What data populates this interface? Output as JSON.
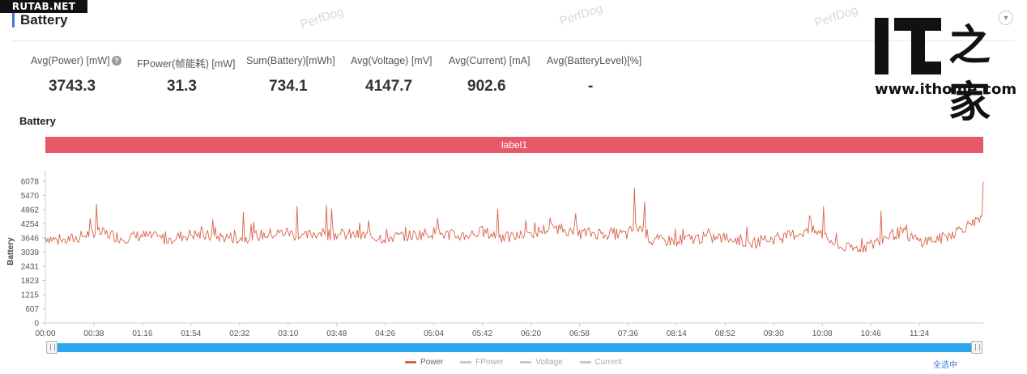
{
  "site_badge": "RUTAB.NET",
  "section_title": "Battery",
  "watermark": "PerfDog",
  "stats": [
    {
      "label": "Avg(Power) [mW]",
      "value": "3743.3",
      "help": true
    },
    {
      "label": "FPower(帧能耗) [mW]",
      "value": "31.3"
    },
    {
      "label": "Sum(Battery)[mWh]",
      "value": "734.1"
    },
    {
      "label": "Avg(Voltage) [mV]",
      "value": "4147.7"
    },
    {
      "label": "Avg(Current) [mA]",
      "value": "902.6"
    },
    {
      "label": "Avg(BatteryLevel)[%]",
      "value": "-"
    }
  ],
  "logo": {
    "brand_text": "IT之家",
    "url": "www.ithome.com"
  },
  "chart_heading": "Battery",
  "label_band": "label1",
  "select_all_label": "全选中",
  "colors": {
    "power": "#d9634a",
    "inactive": "#c8c8c8",
    "band": "#e85868",
    "slider": "#2ba6ec"
  },
  "chart_data": {
    "type": "line",
    "ylabel": "Battery",
    "y_ticks": [
      0,
      607,
      1215,
      1823,
      2431,
      3039,
      3646,
      4254,
      4862,
      5470,
      6078
    ],
    "x_tick_labels": [
      "00:00",
      "00:38",
      "01:16",
      "01:54",
      "02:32",
      "03:10",
      "03:48",
      "04:26",
      "05:04",
      "05:42",
      "06:20",
      "06:58",
      "07:36",
      "08:14",
      "08:52",
      "09:30",
      "10:08",
      "10:46",
      "11:24"
    ],
    "x_range_seconds": [
      0,
      734
    ],
    "ylim": [
      0,
      6078
    ],
    "legend_position": "bottom",
    "series": [
      {
        "name": "Power",
        "active": true,
        "baseline": [
          [
            0,
            3700
          ],
          [
            12,
            3500
          ],
          [
            25,
            3650
          ],
          [
            38,
            3900
          ],
          [
            50,
            3800
          ],
          [
            60,
            3650
          ],
          [
            76,
            3750
          ],
          [
            95,
            3600
          ],
          [
            114,
            3800
          ],
          [
            133,
            3700
          ],
          [
            152,
            3650
          ],
          [
            171,
            3780
          ],
          [
            190,
            3900
          ],
          [
            200,
            3650
          ],
          [
            210,
            3850
          ],
          [
            228,
            3800
          ],
          [
            247,
            3750
          ],
          [
            266,
            3650
          ],
          [
            285,
            3750
          ],
          [
            304,
            3880
          ],
          [
            323,
            3720
          ],
          [
            342,
            3900
          ],
          [
            361,
            3650
          ],
          [
            380,
            3820
          ],
          [
            390,
            4000
          ],
          [
            400,
            4100
          ],
          [
            418,
            3850
          ],
          [
            437,
            3850
          ],
          [
            456,
            3800
          ],
          [
            460,
            4050
          ],
          [
            466,
            4100
          ],
          [
            475,
            3500
          ],
          [
            494,
            3550
          ],
          [
            513,
            3650
          ],
          [
            532,
            3650
          ],
          [
            545,
            3550
          ],
          [
            551,
            3350
          ],
          [
            560,
            3550
          ],
          [
            575,
            3650
          ],
          [
            589,
            3850
          ],
          [
            600,
            3950
          ],
          [
            608,
            3800
          ],
          [
            620,
            3300
          ],
          [
            630,
            3150
          ],
          [
            646,
            3350
          ],
          [
            660,
            3750
          ],
          [
            670,
            3900
          ],
          [
            684,
            3500
          ],
          [
            700,
            3600
          ],
          [
            710,
            3850
          ],
          [
            720,
            4150
          ],
          [
            734,
            4400
          ]
        ],
        "spikes": [
          [
            40,
            5100
          ],
          [
            131,
            4450
          ],
          [
            155,
            4750
          ],
          [
            197,
            5000
          ],
          [
            220,
            5050
          ],
          [
            224,
            4900
          ],
          [
            253,
            4400
          ],
          [
            307,
            4500
          ],
          [
            354,
            4900
          ],
          [
            376,
            4400
          ],
          [
            415,
            4700
          ],
          [
            461,
            5800
          ],
          [
            469,
            5200
          ],
          [
            598,
            4600
          ],
          [
            609,
            5000
          ],
          [
            654,
            4800
          ],
          [
            734,
            6050
          ]
        ]
      },
      {
        "name": "FPower",
        "active": false
      },
      {
        "name": "Voltage",
        "active": false
      },
      {
        "name": "Current",
        "active": false
      }
    ]
  }
}
